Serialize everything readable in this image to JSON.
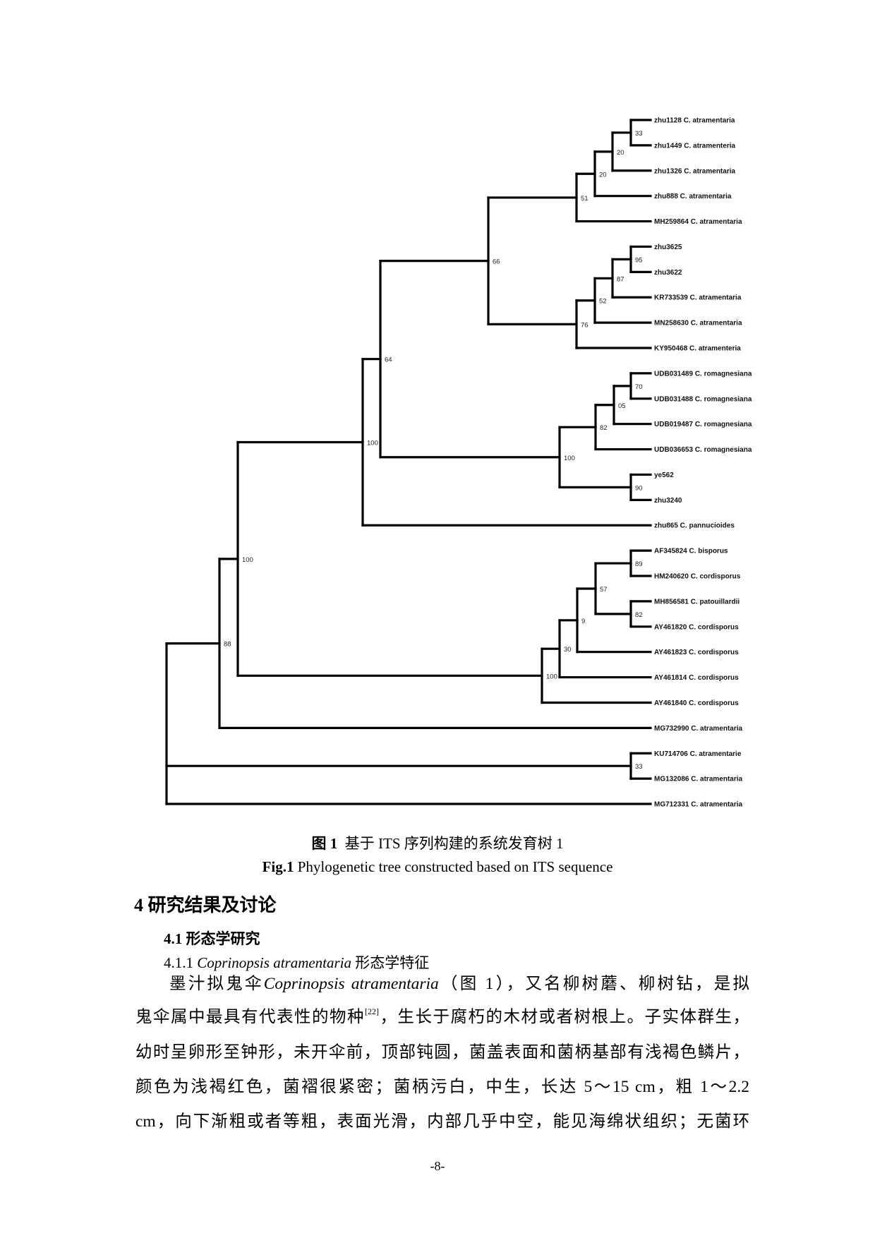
{
  "chart_data": {
    "type": "tree",
    "title": "Phylogenetic tree constructed based on ITS sequence",
    "tree": {
      "id": "root",
      "support": "",
      "children": [
        {
          "id": "A",
          "support": "88",
          "children": [
            {
              "id": "C",
              "support": "100",
              "children": [
                {
                  "id": "D",
                  "support": "100",
                  "children": [
                    {
                      "id": "F",
                      "support": "64",
                      "children": [
                        {
                          "id": "G",
                          "support": "66",
                          "children": [
                            {
                              "id": "I",
                              "support": "51",
                              "children": [
                                {
                                  "id": "K",
                                  "support": "20",
                                  "children": [
                                    {
                                      "id": "L",
                                      "support": "20",
                                      "children": [
                                        {
                                          "id": "M",
                                          "support": "33",
                                          "children": [
                                            {
                                              "leaf": "zhu1128 C. atramentaria"
                                            },
                                            {
                                              "leaf": "zhu1449 C. atramenteria"
                                            }
                                          ]
                                        },
                                        {
                                          "leaf": "zhu1326 C. atramentaria"
                                        }
                                      ]
                                    },
                                    {
                                      "leaf": "zhu888 C. atramentaria"
                                    }
                                  ]
                                },
                                {
                                  "leaf": "MH259864 C. atramentaria"
                                }
                              ]
                            },
                            {
                              "id": "J",
                              "support": "76",
                              "children": [
                                {
                                  "id": "N",
                                  "support": "52",
                                  "children": [
                                    {
                                      "id": "O",
                                      "support": "87",
                                      "children": [
                                        {
                                          "id": "P",
                                          "support": "95",
                                          "children": [
                                            {
                                              "leaf": "zhu3625"
                                            },
                                            {
                                              "leaf": "zhu3622"
                                            }
                                          ]
                                        },
                                        {
                                          "leaf": "KR733539 C. atramentaria"
                                        }
                                      ]
                                    },
                                    {
                                      "leaf": "MN258630 C. atramentaria"
                                    }
                                  ]
                                },
                                {
                                  "leaf": "KY950468 C. atramenteria"
                                }
                              ]
                            }
                          ]
                        },
                        {
                          "id": "H",
                          "support": "100",
                          "children": [
                            {
                              "id": "Q",
                              "support": "82",
                              "children": [
                                {
                                  "id": "S",
                                  "support": "05",
                                  "children": [
                                    {
                                      "id": "T",
                                      "support": "70",
                                      "children": [
                                        {
                                          "leaf": "UDB031489 C. romagnesiana"
                                        },
                                        {
                                          "leaf": "UDB031488 C. romagnesiana"
                                        }
                                      ]
                                    },
                                    {
                                      "leaf": "UDB019487 C. romagnesiana"
                                    }
                                  ]
                                },
                                {
                                  "leaf": "UDB036653 C. romagnesiana"
                                }
                              ]
                            },
                            {
                              "id": "R",
                              "support": "90",
                              "children": [
                                {
                                  "leaf": "ye562"
                                },
                                {
                                  "leaf": "zhu3240"
                                }
                              ]
                            }
                          ]
                        }
                      ]
                    },
                    {
                      "leaf": "zhu865 C. pannucioides"
                    }
                  ]
                },
                {
                  "id": "E",
                  "support": "100",
                  "children": [
                    {
                      "id": "U",
                      "support": "30",
                      "children": [
                        {
                          "id": "V",
                          "support": "9",
                          "children": [
                            {
                              "id": "W",
                              "support": "57",
                              "children": [
                                {
                                  "id": "X",
                                  "support": "89",
                                  "children": [
                                    {
                                      "leaf": "AF345824 C. bisporus"
                                    },
                                    {
                                      "leaf": "HM240620 C. cordisporus"
                                    }
                                  ]
                                },
                                {
                                  "id": "Y",
                                  "support": "82",
                                  "children": [
                                    {
                                      "leaf": "MH856581 C. patouillardii"
                                    },
                                    {
                                      "leaf": "AY461820 C. cordisporus"
                                    }
                                  ]
                                }
                              ]
                            },
                            {
                              "leaf": "AY461823 C. cordisporus"
                            }
                          ]
                        },
                        {
                          "leaf": "AY461814 C. cordisporus"
                        }
                      ]
                    },
                    {
                      "leaf": "AY461840 C. cordisporus"
                    }
                  ]
                }
              ]
            },
            {
              "leaf": "MG732990 C. atramentaria"
            }
          ]
        },
        {
          "id": "Z",
          "support": "33",
          "children": [
            {
              "leaf": "KU714706 C. atramentarie"
            },
            {
              "leaf": "MG132086 C. atramentaria"
            }
          ]
        },
        {
          "leaf": "MG712331 C. atramentaria"
        }
      ]
    }
  },
  "caption": {
    "cn_label": "图 1",
    "cn_text": "基于 ITS 序列构建的系统发育树 1",
    "en_label": "Fig.1",
    "en_text": "Phylogenetic tree constructed based on ITS sequence"
  },
  "section": {
    "heading": "4 研究结果及讨论",
    "subheading": "4.1 形态学研究",
    "subsub_number": "4.1.1",
    "subsub_species": "Coprinopsis atramentaria",
    "subsub_suffix": "形态学特征"
  },
  "paragraph": {
    "l1_a": "墨汁拟鬼伞",
    "l1_species": "Coprinopsis atramentaria",
    "l1_b": "（图 1），又名柳树蘑、柳树钻，是拟",
    "l2_a": "鬼伞属中最具有代表性的物种",
    "l2_ref": "[22]",
    "l2_b": "，生长于腐朽的木材或者树根上。子实体群生，",
    "l3": "幼时呈卵形至钟形，未开伞前，顶部钝圆，菌盖表面和菌柄基部有浅褐色鳞片，",
    "l4": "颜色为浅褐红色，菌褶很紧密；菌柄污白，中生，长达 5～15 cm，粗 1～2.2",
    "l5": "cm，向下渐粗或者等粗，表面光滑，内部几乎中空，能见海绵状组织；无菌环"
  },
  "page_number": "-8-"
}
